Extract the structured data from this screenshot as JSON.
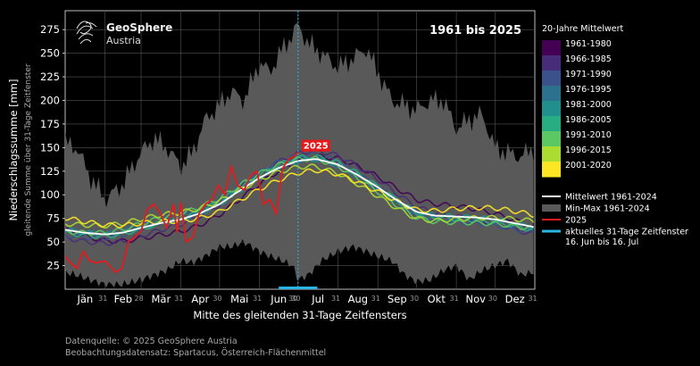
{
  "chart_data": {
    "type": "area",
    "title": "1961 bis 2025",
    "ylabel": "Niederschlagssumme [mm]",
    "ylabel_sub": "gleitende Summe über 31-Tage Zeitfenster",
    "xlabel": "Mitte des gleitenden 31-Tage Zeitfensters",
    "ylim": [
      0,
      295
    ],
    "yticks": [
      25,
      50,
      75,
      100,
      125,
      150,
      175,
      200,
      225,
      250,
      275
    ],
    "grid": true,
    "months": [
      "Jän",
      "Feb",
      "Mär",
      "Apr",
      "Mai",
      "Jun",
      "Jul",
      "Aug",
      "Sep",
      "Okt",
      "Nov",
      "Dez"
    ],
    "month_end_labels": [
      "31",
      "28",
      "31",
      "30",
      "31",
      "30",
      "31",
      "31",
      "30",
      "31",
      "30",
      "31"
    ],
    "logo": {
      "line1": "GeoSphere",
      "line2": "Austria"
    },
    "series_label": "2025",
    "colorbar": {
      "title": "20-Jahre Mittelwert",
      "labels": [
        "1961-1980",
        "1966-1985",
        "1971-1990",
        "1976-1995",
        "1981-2000",
        "1986-2005",
        "1991-2010",
        "1996-2015",
        "2001-2020"
      ],
      "colors": [
        "#440154",
        "#472c7a",
        "#3b518b",
        "#2c718e",
        "#21908d",
        "#27ad81",
        "#5cc863",
        "#aadc32",
        "#fde725"
      ]
    },
    "legend": [
      {
        "label": "Mittelwert 1961-2024",
        "color": "#ffffff"
      },
      {
        "label": "Min-Max 1961-2024",
        "color": "#595959"
      },
      {
        "label": "2025",
        "color": "#e41a1c"
      },
      {
        "label": "aktuelles 31-Tage Zeitfenster",
        "label2": "16. Jun bis 16. Jul",
        "color": "#29b6e6"
      }
    ],
    "doy_months_start": [
      1,
      32,
      60,
      91,
      121,
      152,
      182,
      213,
      244,
      274,
      305,
      335
    ],
    "current_window": {
      "start_doy": 167,
      "end_doy": 197,
      "center_doy": 182
    },
    "mean": {
      "x": [
        1,
        15,
        32,
        46,
        60,
        75,
        91,
        105,
        121,
        135,
        152,
        166,
        182,
        196,
        213,
        227,
        244,
        258,
        274,
        288,
        305,
        320,
        335,
        350,
        365
      ],
      "y": [
        63,
        60,
        58,
        60,
        65,
        70,
        74,
        80,
        90,
        103,
        118,
        128,
        136,
        138,
        132,
        122,
        108,
        95,
        82,
        78,
        77,
        76,
        74,
        70,
        66
      ]
    },
    "minmax": {
      "x": [
        1,
        10,
        20,
        32,
        45,
        60,
        70,
        80,
        91,
        100,
        110,
        121,
        130,
        140,
        152,
        160,
        170,
        178,
        182,
        190,
        200,
        213,
        225,
        235,
        244,
        255,
        265,
        274,
        285,
        295,
        305,
        315,
        325,
        335,
        345,
        355,
        365
      ],
      "max": [
        155,
        150,
        120,
        95,
        110,
        145,
        160,
        150,
        130,
        145,
        180,
        195,
        210,
        200,
        240,
        230,
        255,
        270,
        280,
        260,
        250,
        235,
        245,
        255,
        230,
        200,
        195,
        190,
        200,
        200,
        170,
        180,
        185,
        150,
        145,
        140,
        150
      ],
      "min": [
        18,
        15,
        10,
        5,
        5,
        10,
        15,
        20,
        30,
        28,
        35,
        45,
        45,
        50,
        40,
        35,
        30,
        25,
        10,
        15,
        30,
        40,
        45,
        40,
        35,
        30,
        15,
        8,
        10,
        20,
        25,
        10,
        20,
        25,
        30,
        15,
        18
      ]
    },
    "series_2025": {
      "x": [
        1,
        5,
        10,
        15,
        20,
        25,
        32,
        40,
        45,
        50,
        55,
        60,
        65,
        70,
        75,
        80,
        85,
        88,
        91,
        95,
        100,
        105,
        110,
        115,
        120,
        125,
        130,
        135,
        140,
        145,
        150,
        155,
        160,
        165,
        170,
        175,
        178,
        182
      ],
      "y": [
        35,
        28,
        22,
        40,
        30,
        28,
        30,
        18,
        22,
        50,
        55,
        62,
        85,
        90,
        80,
        65,
        90,
        60,
        92,
        50,
        55,
        80,
        90,
        95,
        110,
        100,
        130,
        110,
        105,
        120,
        125,
        90,
        95,
        80,
        128,
        138,
        140,
        145
      ]
    }
  }
}
